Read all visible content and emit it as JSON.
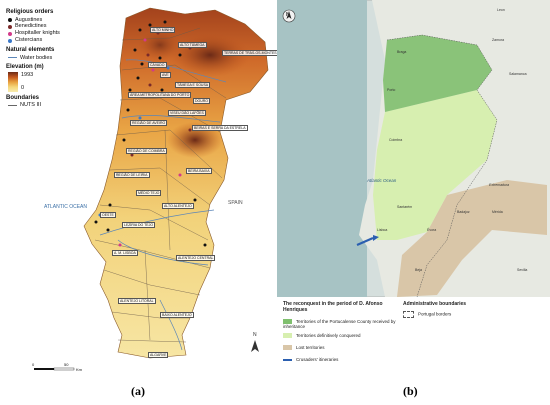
{
  "panel_a": {
    "legend": {
      "religious_orders_title": "Religious orders",
      "orders": [
        {
          "label": "Augustines",
          "color": "#111111"
        },
        {
          "label": "Benedictines",
          "color": "#7a2a2a"
        },
        {
          "label": "Hospitaller knights",
          "color": "#d23a8a"
        },
        {
          "label": "Cistercians",
          "color": "#3a78c9"
        }
      ],
      "natural_title": "Natural elements",
      "water_label": "Water bodies",
      "elevation_title": "Elevation (m)",
      "elev_max": "1993",
      "elev_min": "0",
      "boundaries_title": "Boundaries",
      "nuts_label": "NUTS III"
    },
    "regions": [
      "ALTO MINHO",
      "ALTO TÂMEGA",
      "TERRAS DE TRÁS-OS-MONTES",
      "CÁVADO",
      "AVE",
      "TÂMEGA E SOUSA",
      "ÁREA METROPOLITANA DO PORTO",
      "DOURO",
      "REGIÃO DE AVEIRO",
      "VISEU DÃO LAFÕES",
      "BEIRAS E SERRA DA ESTRELA",
      "REGIÃO DE COIMBRA",
      "BEIRA BAIXA",
      "REGIÃO DE LEIRIA",
      "MÉDIO TEJO",
      "OESTE",
      "LEZÍRIA DO TEJO",
      "ALTO ALENTEJO",
      "A. M. LISBOA",
      "ALENTEJO CENTRAL",
      "ALENTEJO LITORAL",
      "BAIXO ALENTEJO",
      "ALGARVE"
    ],
    "ocean_label": "ATLANTIC OCEAN",
    "spain_label": "SPAIN",
    "north_label": "N",
    "scale_ticks": [
      "0",
      "50"
    ],
    "scale_unit": "Km"
  },
  "panel_b": {
    "north_label": "N",
    "ocean_label": "Atlantic Ocean",
    "places": [
      "Braga",
      "Porto",
      "Coimbra",
      "Santarém",
      "Lisboa",
      "Évora",
      "Beja",
      "Badajoz",
      "Mérida",
      "Salamanca",
      "Sevilla",
      "Leon",
      "Zamora",
      "Extremadura"
    ],
    "legend": {
      "title": "The reconquest in the period of D. Afonso Henriques",
      "items": [
        {
          "label": "Territories of the Portucalense County received by inheritance",
          "color": "#7fbf6e"
        },
        {
          "label": "Territories definitively conquered",
          "color": "#d7efb0"
        },
        {
          "label": "Lost territories",
          "color": "#d9c6a8"
        },
        {
          "label": "Crusaders' itineraries",
          "color": "#2b5fb0"
        }
      ],
      "admin_title": "Administrative boundaries",
      "admin_label": "Portugal borders"
    }
  },
  "captions": {
    "a": "(a)",
    "b": "(b)"
  }
}
